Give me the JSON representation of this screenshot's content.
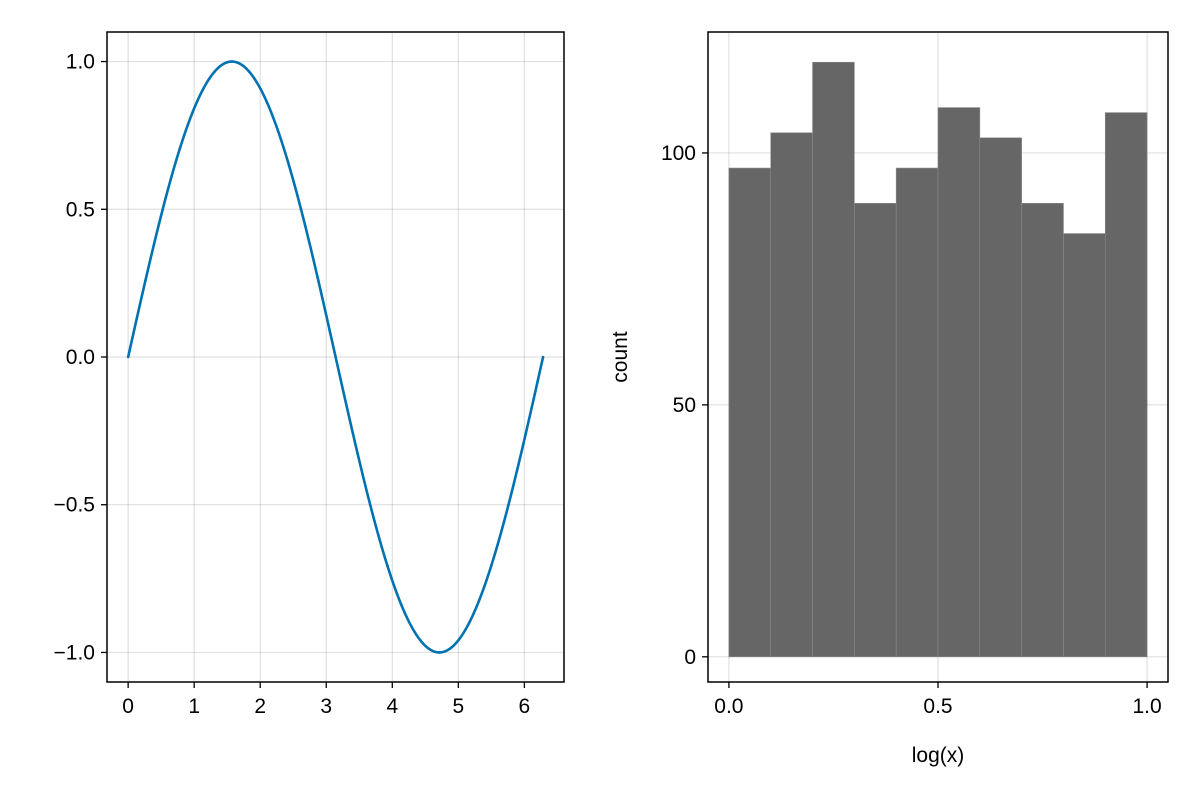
{
  "chart_data": [
    {
      "type": "line",
      "title": "",
      "xlabel": "",
      "ylabel": "",
      "xlim": [
        -0.32,
        6.6
      ],
      "ylim": [
        -1.1,
        1.1
      ],
      "grid": true,
      "color": "#0072b2",
      "xticks": [
        0,
        1,
        2,
        3,
        4,
        5,
        6
      ],
      "xtick_labels": [
        "0",
        "1",
        "2",
        "3",
        "4",
        "5",
        "6"
      ],
      "yticks": [
        1.0,
        0.5,
        0.0,
        -0.5,
        -1.0
      ],
      "ytick_labels": [
        "1.0",
        "0.5",
        "0.0",
        "−0.5",
        "−1.0"
      ],
      "series": [
        {
          "x": [
            0,
            0.2618,
            0.5236,
            0.7854,
            1.0472,
            1.309,
            1.5708,
            1.8326,
            2.0944,
            2.3562,
            2.618,
            2.8798,
            3.1416,
            3.4034,
            3.6652,
            3.927,
            4.1888,
            4.4506,
            4.7124,
            4.9742,
            5.236,
            5.4978,
            5.7596,
            6.0214,
            6.2832
          ],
          "y": [
            0,
            0.259,
            0.5,
            0.707,
            0.866,
            0.966,
            1.0,
            0.966,
            0.866,
            0.707,
            0.5,
            0.259,
            0,
            -0.259,
            -0.5,
            -0.707,
            -0.866,
            -0.966,
            -1.0,
            -0.966,
            -0.866,
            -0.707,
            -0.5,
            -0.259,
            0
          ]
        }
      ]
    },
    {
      "type": "bar",
      "title": "",
      "xlabel": "log(x)",
      "ylabel": "count",
      "xlim": [
        -0.05,
        1.05
      ],
      "ylim": [
        -5,
        124
      ],
      "grid": true,
      "color": "#666666",
      "bin_edges": [
        0.0,
        0.1,
        0.2,
        0.3,
        0.4,
        0.5,
        0.6,
        0.7,
        0.8,
        0.9,
        1.0
      ],
      "values": [
        97,
        104,
        118,
        90,
        97,
        109,
        103,
        90,
        84,
        108
      ],
      "xticks": [
        0.0,
        0.5,
        1.0
      ],
      "xtick_labels": [
        "0.0",
        "0.5",
        "1.0"
      ],
      "yticks": [
        0,
        50,
        100
      ],
      "ytick_labels": [
        "0",
        "50",
        "100"
      ]
    }
  ]
}
